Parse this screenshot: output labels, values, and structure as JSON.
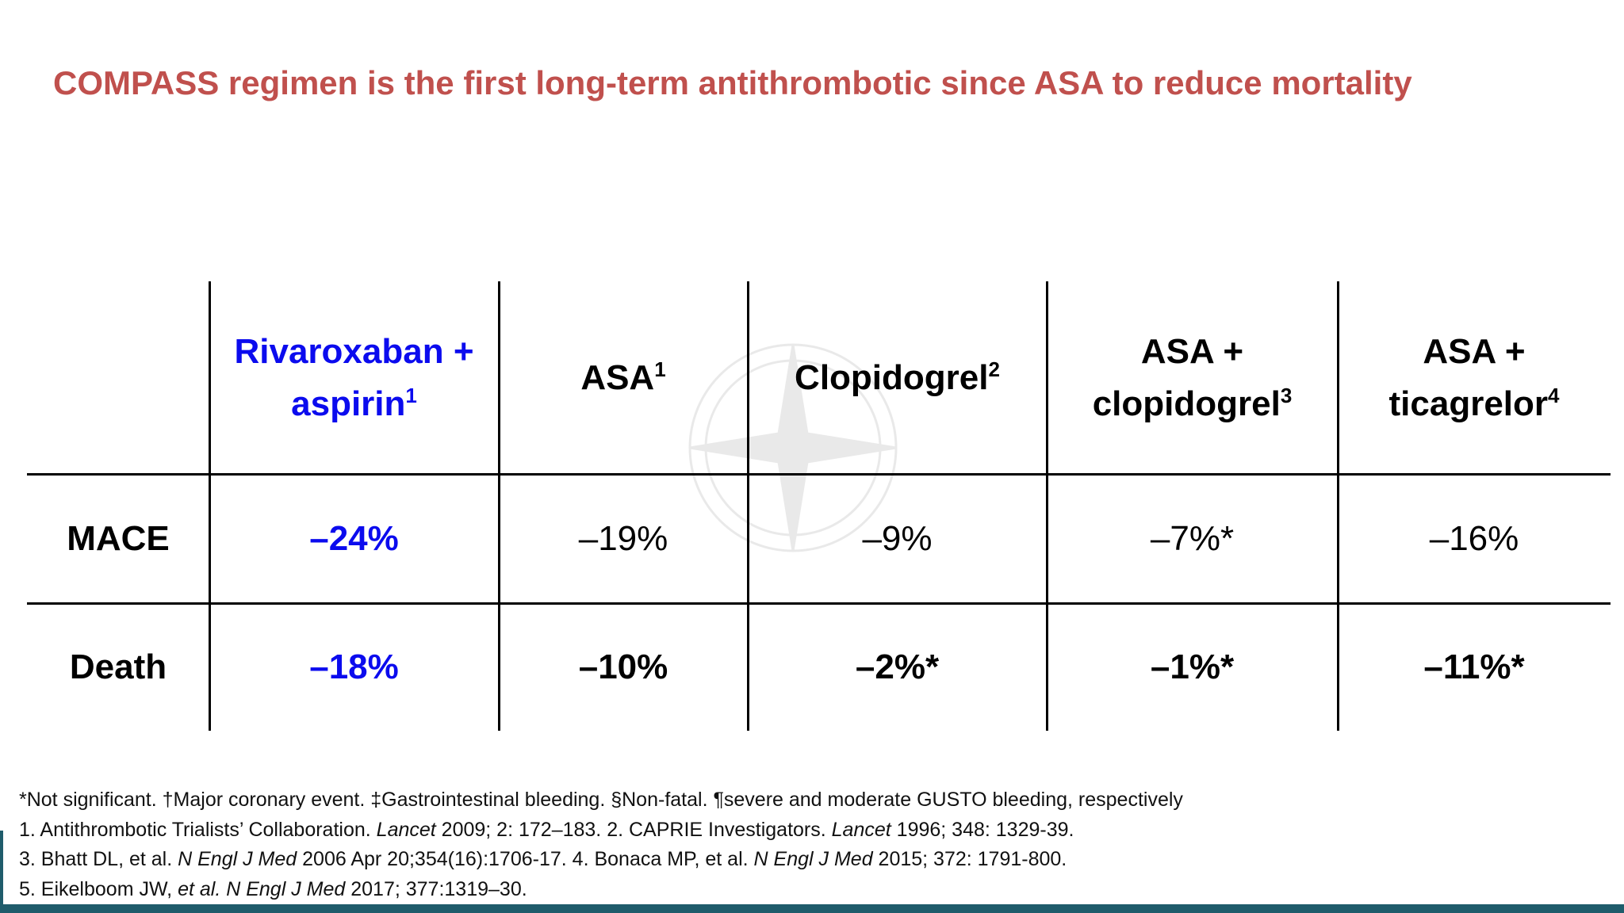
{
  "header": {
    "title": "COMPASS regimen is the first long-term antithrombotic since ASA to reduce mortality"
  },
  "table": {
    "columns": [
      {
        "text": "Rivaroxaban + aspirin",
        "sup": "1"
      },
      {
        "text": "ASA",
        "sup": "1"
      },
      {
        "text": "Clopidogrel",
        "sup": "2"
      },
      {
        "text": "ASA + clopidogrel",
        "sup": "3"
      },
      {
        "text": "ASA + ticagrelor",
        "sup": "4"
      }
    ],
    "rows": [
      [
        "MACE",
        "–24%",
        "–19%",
        "–9%",
        "–7%*",
        "–16%"
      ],
      [
        "Death",
        "–18%",
        "–10%",
        "–2%*",
        "–1%*",
        "–11%*"
      ]
    ]
  },
  "footnotes": [
    [
      {
        "text": "*Not significant. †Major coronary event. ‡Gastrointestinal bleeding. §Non-fatal. ¶severe and moderate GUSTO bleeding, respectively",
        "italic": false
      }
    ],
    [
      {
        "text": "1. Antithrombotic Trialists’ Collaboration. ",
        "italic": false
      },
      {
        "text": "Lancet",
        "italic": true
      },
      {
        "text": " 2009; 2: 172–183. 2. CAPRIE Investigators. ",
        "italic": false
      },
      {
        "text": "Lancet",
        "italic": true
      },
      {
        "text": " 1996; 348: 1329-39.",
        "italic": false
      }
    ],
    [
      {
        "text": "3. Bhatt DL, et al. ",
        "italic": false
      },
      {
        "text": "N Engl J Med",
        "italic": true
      },
      {
        "text": " 2006 Apr 20;354(16):1706-17. 4. Bonaca MP, et al. ",
        "italic": false
      },
      {
        "text": "N Engl J Med",
        "italic": true
      },
      {
        "text": " 2015; 372: 1791-800.",
        "italic": false
      }
    ],
    [
      {
        "text": "5. Eikelboom JW, ",
        "italic": false
      },
      {
        "text": "et al. N Engl J Med",
        "italic": true
      },
      {
        "text": " 2017; 377:1319–30.",
        "italic": false
      }
    ]
  ]
}
